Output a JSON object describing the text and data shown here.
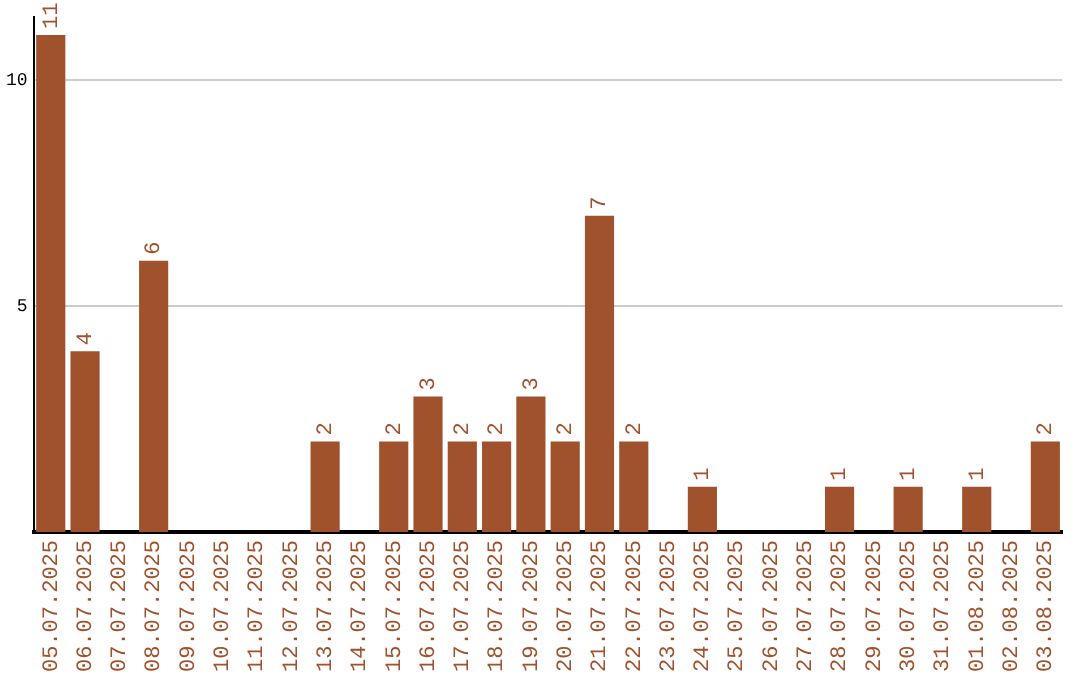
{
  "chart_data": {
    "type": "bar",
    "categories": [
      "05.07.2025",
      "06.07.2025",
      "07.07.2025",
      "08.07.2025",
      "09.07.2025",
      "10.07.2025",
      "11.07.2025",
      "12.07.2025",
      "13.07.2025",
      "14.07.2025",
      "15.07.2025",
      "16.07.2025",
      "17.07.2025",
      "18.07.2025",
      "19.07.2025",
      "20.07.2025",
      "21.07.2025",
      "22.07.2025",
      "23.07.2025",
      "24.07.2025",
      "25.07.2025",
      "26.07.2025",
      "27.07.2025",
      "28.07.2025",
      "29.07.2025",
      "30.07.2025",
      "31.07.2025",
      "01.08.2025",
      "02.08.2025",
      "03.08.2025"
    ],
    "values": [
      11,
      4,
      0,
      6,
      0,
      0,
      0,
      0,
      2,
      0,
      2,
      3,
      2,
      2,
      3,
      2,
      7,
      2,
      0,
      1,
      0,
      0,
      0,
      1,
      0,
      1,
      0,
      1,
      0,
      2
    ],
    "value_labels": [
      "11",
      "4",
      null,
      "6",
      null,
      null,
      null,
      null,
      "2",
      null,
      "2",
      "3",
      "2",
      "2",
      "3",
      "2",
      "7",
      "2",
      null,
      "1",
      null,
      null,
      null,
      "1",
      null,
      "1",
      null,
      "1",
      null,
      "2"
    ],
    "color": "#a0522d",
    "ylim": [
      0,
      11.4
    ],
    "yticks": [
      5,
      10
    ],
    "grid": "y",
    "legend": false
  }
}
